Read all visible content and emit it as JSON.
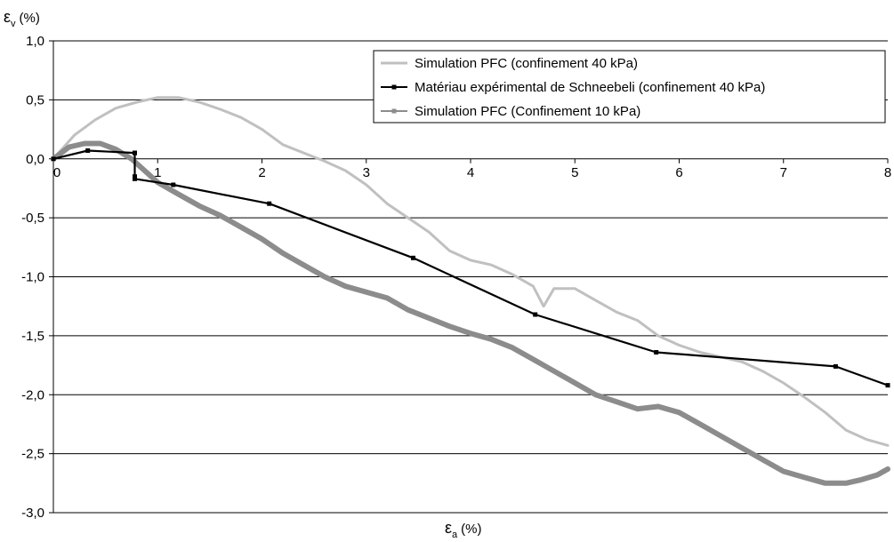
{
  "chart_data": {
    "type": "line",
    "title": "",
    "xlabel": {
      "symbol": "ε",
      "sub": "a",
      "unit": "(%)"
    },
    "ylabel": {
      "symbol": "ε",
      "sub": "v",
      "unit": "(%)"
    },
    "xlim": [
      0,
      8
    ],
    "ylim": [
      -3.0,
      1.0
    ],
    "x_ticks": [
      0,
      1,
      2,
      3,
      4,
      5,
      6,
      7,
      8
    ],
    "y_ticks": [
      1.0,
      0.5,
      0.0,
      -0.5,
      -1.0,
      -1.5,
      -2.0,
      -2.5,
      -3.0
    ],
    "x_tick_labels": [
      "0",
      "1",
      "2",
      "3",
      "4",
      "5",
      "6",
      "7",
      "8"
    ],
    "y_tick_labels": [
      "1,0",
      "0,5",
      "0,0",
      "-0,5",
      "-1,0",
      "-1,5",
      "-2,0",
      "-2,5",
      "-3,0"
    ],
    "grid": "horizontal",
    "legend_position": "top-right",
    "colors": {
      "light_gray": "#c0c0c0",
      "black": "#000000",
      "mid_gray": "#8c8c8c",
      "grid": "#000000"
    },
    "series": [
      {
        "name": "Simulation PFC (confinement 40 kPa)",
        "color": "#c0c0c0",
        "marker": "none",
        "x": [
          0,
          0.2,
          0.4,
          0.6,
          0.8,
          1.0,
          1.2,
          1.4,
          1.6,
          1.8,
          2.0,
          2.2,
          2.4,
          2.6,
          2.8,
          3.0,
          3.2,
          3.4,
          3.6,
          3.8,
          4.0,
          4.2,
          4.4,
          4.6,
          4.7,
          4.8,
          5.0,
          5.2,
          5.4,
          5.6,
          5.8,
          6.0,
          6.2,
          6.4,
          6.6,
          6.8,
          7.0,
          7.2,
          7.4,
          7.6,
          7.8,
          8.0
        ],
        "y": [
          0,
          0.2,
          0.33,
          0.43,
          0.48,
          0.52,
          0.52,
          0.48,
          0.42,
          0.35,
          0.25,
          0.12,
          0.05,
          -0.02,
          -0.1,
          -0.22,
          -0.38,
          -0.5,
          -0.62,
          -0.78,
          -0.86,
          -0.9,
          -0.98,
          -1.08,
          -1.25,
          -1.1,
          -1.1,
          -1.2,
          -1.3,
          -1.37,
          -1.5,
          -1.58,
          -1.64,
          -1.68,
          -1.72,
          -1.8,
          -1.9,
          -2.02,
          -2.15,
          -2.3,
          -2.38,
          -2.43
        ]
      },
      {
        "name": "Matériau expérimental de Schneebeli (confinement 40 kPa)",
        "color": "#000000",
        "marker": "square",
        "x": [
          0,
          0.33,
          0.78,
          0.78,
          0.78,
          0.78,
          1.15,
          2.07,
          3.45,
          4.62,
          5.78,
          7.5,
          8.0
        ],
        "y": [
          0,
          0.07,
          0.05,
          0.05,
          -0.15,
          -0.17,
          -0.22,
          -0.38,
          -0.84,
          -1.32,
          -1.64,
          -1.76,
          -1.92
        ]
      },
      {
        "name": "Simulation PFC (Confinement 10 kPa)",
        "color": "#8c8c8c",
        "marker": "square",
        "x": [
          0,
          0.15,
          0.3,
          0.45,
          0.6,
          0.75,
          0.9,
          1.0,
          1.2,
          1.4,
          1.6,
          1.8,
          2.0,
          2.2,
          2.4,
          2.6,
          2.8,
          3.0,
          3.2,
          3.4,
          3.6,
          3.8,
          4.0,
          4.2,
          4.4,
          4.6,
          4.8,
          5.0,
          5.2,
          5.4,
          5.6,
          5.8,
          6.0,
          6.2,
          6.4,
          6.6,
          6.8,
          7.0,
          7.2,
          7.4,
          7.6,
          7.75,
          7.9,
          8.0
        ],
        "y": [
          0,
          0.1,
          0.13,
          0.13,
          0.08,
          0.0,
          -0.12,
          -0.2,
          -0.3,
          -0.4,
          -0.48,
          -0.58,
          -0.68,
          -0.8,
          -0.9,
          -1.0,
          -1.08,
          -1.13,
          -1.18,
          -1.28,
          -1.35,
          -1.42,
          -1.48,
          -1.53,
          -1.6,
          -1.7,
          -1.8,
          -1.9,
          -2.0,
          -2.06,
          -2.12,
          -2.1,
          -2.15,
          -2.25,
          -2.35,
          -2.45,
          -2.55,
          -2.65,
          -2.7,
          -2.75,
          -2.75,
          -2.72,
          -2.68,
          -2.63
        ]
      }
    ]
  }
}
